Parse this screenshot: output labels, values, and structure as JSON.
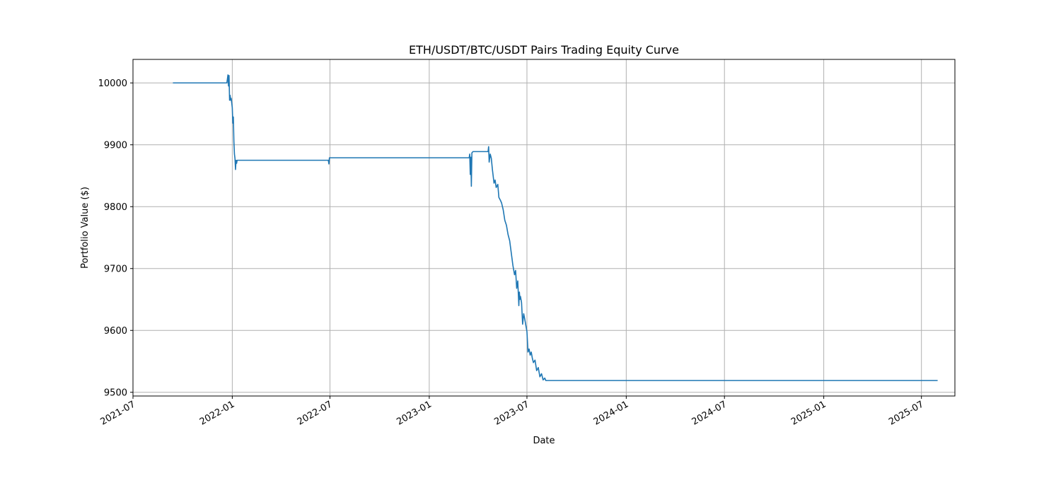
{
  "chart_data": {
    "type": "line",
    "title": "ETH/USDT/BTC/USDT Pairs Trading Equity Curve",
    "xlabel": "Date",
    "ylabel": "Portfolio Value ($)",
    "x_type": "date",
    "xlim": [
      "2021-07-01",
      "2025-09-01"
    ],
    "ylim": [
      9494,
      10038
    ],
    "grid": true,
    "x_ticks": [
      "2021-07",
      "2022-01",
      "2022-07",
      "2023-01",
      "2023-07",
      "2024-01",
      "2024-07",
      "2025-01",
      "2025-07"
    ],
    "y_ticks": [
      9500,
      9600,
      9700,
      9800,
      9900,
      10000
    ],
    "line_color": "#1f77b4",
    "series": [
      {
        "x": [
          "2021-09-13",
          "2021-12-22",
          "2021-12-24",
          "2021-12-25",
          "2021-12-26",
          "2021-12-27",
          "2021-12-28",
          "2021-12-29",
          "2021-12-30",
          "2022-01-01",
          "2022-01-02",
          "2022-01-03",
          "2022-01-04",
          "2022-01-05",
          "2022-01-06",
          "2022-01-07",
          "2022-01-08",
          "2022-01-09",
          "2022-01-10",
          "2022-01-11",
          "2022-06-28",
          "2022-06-29",
          "2022-06-30",
          "2023-03-16",
          "2023-03-17",
          "2023-03-18",
          "2023-03-19",
          "2023-03-20",
          "2023-03-21",
          "2023-03-23",
          "2023-04-20",
          "2023-04-21",
          "2023-04-22",
          "2023-04-24",
          "2023-04-26",
          "2023-04-28",
          "2023-05-01",
          "2023-05-03",
          "2023-05-05",
          "2023-05-08",
          "2023-05-10",
          "2023-05-13",
          "2023-05-15",
          "2023-05-18",
          "2023-05-21",
          "2023-05-24",
          "2023-05-27",
          "2023-05-30",
          "2023-06-02",
          "2023-06-05",
          "2023-06-08",
          "2023-06-10",
          "2023-06-12",
          "2023-06-14",
          "2023-06-16",
          "2023-06-17",
          "2023-06-18",
          "2023-06-19",
          "2023-06-21",
          "2023-06-23",
          "2023-06-25",
          "2023-06-27",
          "2023-06-29",
          "2023-07-01",
          "2023-07-03",
          "2023-07-05",
          "2023-07-07",
          "2023-07-09",
          "2023-07-11",
          "2023-07-13",
          "2023-07-16",
          "2023-07-19",
          "2023-07-22",
          "2023-07-25",
          "2023-07-28",
          "2023-07-31",
          "2023-08-03",
          "2023-08-05",
          "2023-08-07",
          "2025-07-31"
        ],
        "values": [
          10000,
          10000,
          10013,
          9995,
          10012,
          9972,
          9980,
          9972,
          9975,
          9960,
          9935,
          9945,
          9905,
          9885,
          9878,
          9860,
          9875,
          9870,
          9875,
          9875,
          9875,
          9869,
          9879,
          9879,
          9885,
          9852,
          9880,
          9833,
          9887,
          9889,
          9889,
          9897,
          9872,
          9885,
          9878,
          9860,
          9838,
          9843,
          9831,
          9836,
          9815,
          9810,
          9806,
          9795,
          9778,
          9770,
          9755,
          9745,
          9725,
          9705,
          9690,
          9697,
          9668,
          9680,
          9640,
          9662,
          9650,
          9655,
          9645,
          9610,
          9627,
          9618,
          9608,
          9598,
          9565,
          9570,
          9560,
          9565,
          9555,
          9548,
          9552,
          9535,
          9540,
          9525,
          9530,
          9520,
          9523,
          9519,
          9519,
          9519
        ]
      }
    ]
  }
}
